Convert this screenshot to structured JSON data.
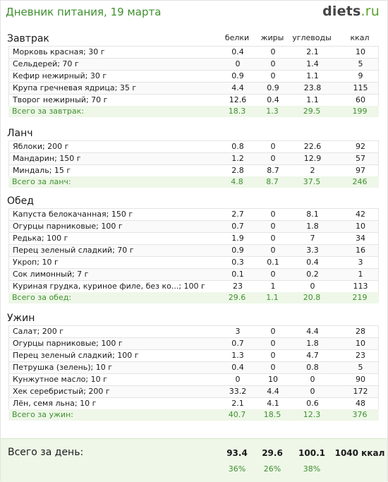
{
  "header": {
    "title": "Дневник питания, 19 марта",
    "logo_main": "diets",
    "logo_suffix": ".ru"
  },
  "columns": {
    "protein": "белки",
    "fat": "жиры",
    "carbs": "углеводы",
    "kcal": "ккал"
  },
  "meals": [
    {
      "title": "Завтрак",
      "items": [
        {
          "name": "Морковь красная; 30 г",
          "protein": "0.4",
          "fat": "0",
          "carbs": "2.1",
          "kcal": "10"
        },
        {
          "name": "Сельдерей; 70 г",
          "protein": "0",
          "fat": "0",
          "carbs": "1.4",
          "kcal": "5"
        },
        {
          "name": "Кефир нежирный; 30 г",
          "protein": "0.9",
          "fat": "0",
          "carbs": "1.1",
          "kcal": "9"
        },
        {
          "name": "Крупа гречневая ядрица; 35 г",
          "protein": "4.4",
          "fat": "0.9",
          "carbs": "23.8",
          "kcal": "115"
        },
        {
          "name": "Творог нежирный; 70 г",
          "protein": "12.6",
          "fat": "0.4",
          "carbs": "1.1",
          "kcal": "60"
        }
      ],
      "total": {
        "label": "Всего за завтрак:",
        "protein": "18.3",
        "fat": "1.3",
        "carbs": "29.5",
        "kcal": "199"
      }
    },
    {
      "title": "Ланч",
      "items": [
        {
          "name": "Яблоки; 200 г",
          "protein": "0.8",
          "fat": "0",
          "carbs": "22.6",
          "kcal": "92"
        },
        {
          "name": "Мандарин; 150 г",
          "protein": "1.2",
          "fat": "0",
          "carbs": "12.9",
          "kcal": "57"
        },
        {
          "name": "Миндаль; 15 г",
          "protein": "2.8",
          "fat": "8.7",
          "carbs": "2",
          "kcal": "97"
        }
      ],
      "total": {
        "label": "Всего за ланч:",
        "protein": "4.8",
        "fat": "8.7",
        "carbs": "37.5",
        "kcal": "246"
      }
    },
    {
      "title": "Обед",
      "items": [
        {
          "name": "Капуста белокачанная; 150 г",
          "protein": "2.7",
          "fat": "0",
          "carbs": "8.1",
          "kcal": "42"
        },
        {
          "name": "Огурцы парниковые; 100 г",
          "protein": "0.7",
          "fat": "0",
          "carbs": "1.8",
          "kcal": "10"
        },
        {
          "name": "Редька; 100 г",
          "protein": "1.9",
          "fat": "0",
          "carbs": "7",
          "kcal": "34"
        },
        {
          "name": "Перец зеленый сладкий; 70 г",
          "protein": "0.9",
          "fat": "0",
          "carbs": "3.3",
          "kcal": "16"
        },
        {
          "name": "Укроп; 10 г",
          "protein": "0.3",
          "fat": "0.1",
          "carbs": "0.4",
          "kcal": "3"
        },
        {
          "name": "Сок лимонный; 7 г",
          "protein": "0.1",
          "fat": "0",
          "carbs": "0.2",
          "kcal": "1"
        },
        {
          "name": "Куриная грудка, куриное филе, без ко...; 100 г",
          "protein": "23",
          "fat": "1",
          "carbs": "0",
          "kcal": "113"
        }
      ],
      "total": {
        "label": "Всего за обед:",
        "protein": "29.6",
        "fat": "1.1",
        "carbs": "20.8",
        "kcal": "219"
      }
    },
    {
      "title": "Ужин",
      "items": [
        {
          "name": "Салат; 200 г",
          "protein": "3",
          "fat": "0",
          "carbs": "4.4",
          "kcal": "28"
        },
        {
          "name": "Огурцы парниковые; 100 г",
          "protein": "0.7",
          "fat": "0",
          "carbs": "1.8",
          "kcal": "10"
        },
        {
          "name": "Перец зеленый сладкий; 100 г",
          "protein": "1.3",
          "fat": "0",
          "carbs": "4.7",
          "kcal": "23"
        },
        {
          "name": "Петрушка (зелень); 10 г",
          "protein": "0.4",
          "fat": "0",
          "carbs": "0.8",
          "kcal": "5"
        },
        {
          "name": "Кунжутное масло; 10 г",
          "protein": "0",
          "fat": "10",
          "carbs": "0",
          "kcal": "90"
        },
        {
          "name": "Хек серебристый; 200 г",
          "protein": "33.2",
          "fat": "4.4",
          "carbs": "0",
          "kcal": "172"
        },
        {
          "name": "Лён, семя льна; 10 г",
          "protein": "2.1",
          "fat": "4.1",
          "carbs": "0.6",
          "kcal": "48"
        }
      ],
      "total": {
        "label": "Всего за ужин:",
        "protein": "40.7",
        "fat": "18.5",
        "carbs": "12.3",
        "kcal": "376"
      }
    }
  ],
  "day_total": {
    "label": "Всего за день:",
    "protein": "93.4",
    "fat": "29.6",
    "carbs": "100.1",
    "kcal": "1040 ккал",
    "protein_pct": "36%",
    "fat_pct": "26%",
    "carbs_pct": "38%"
  }
}
